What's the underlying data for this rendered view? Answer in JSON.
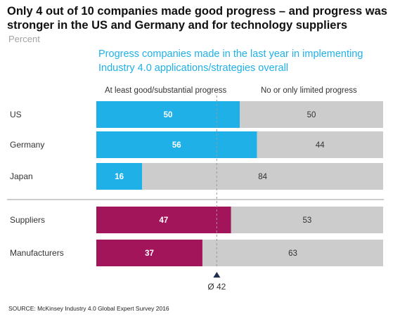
{
  "title": "Only 4 out of 10 companies made good progress – and progress was stronger in the US and Germany and for technology suppliers",
  "unit": "Percent",
  "source": "SOURCE: McKinsey Industry 4.0 Global Expert Survey 2016",
  "colors": {
    "blue": "#1fb0e8",
    "magenta": "#a3155a",
    "gray": "#cccccc",
    "dashed": "#9a9a9a",
    "marker": "#1d2f4f"
  },
  "chart_data": {
    "type": "bar",
    "stacked": true,
    "orientation": "horizontal",
    "title": "Progress companies made in the last year in implementing Industry 4.0 applications/strategies overall",
    "categories": [
      "US",
      "Germany",
      "Japan",
      "Suppliers",
      "Manufacturers"
    ],
    "groups": [
      [
        "US",
        "Germany",
        "Japan"
      ],
      [
        "Suppliers",
        "Manufacturers"
      ]
    ],
    "series": [
      {
        "name": "At least good/substantial progress",
        "values": [
          50,
          56,
          16,
          47,
          37
        ]
      },
      {
        "name": "No or only limited progress",
        "values": [
          50,
          44,
          84,
          53,
          63
        ]
      }
    ],
    "xlim": [
      0,
      100
    ],
    "average": {
      "value": 42,
      "label": "Ø 42"
    }
  }
}
